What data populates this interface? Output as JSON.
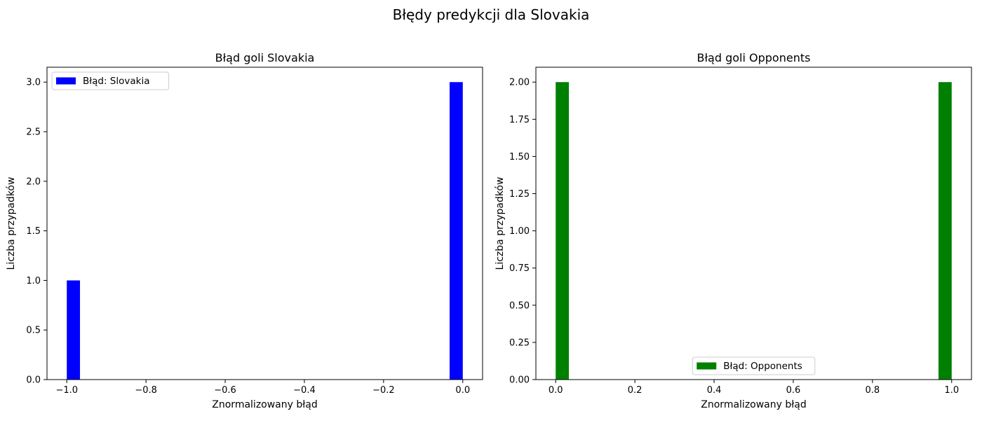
{
  "figure": {
    "suptitle": "Błędy predykcji dla Slovakia"
  },
  "chart_data": [
    {
      "type": "bar",
      "title": "Błąd goli Slovakia",
      "xlabel": "Znormalizowany błąd",
      "ylabel": "Liczba przypadków",
      "xlim": [
        -1.05,
        0.05
      ],
      "ylim": [
        0,
        3.15
      ],
      "xticks": [
        -1.0,
        -0.8,
        -0.6,
        -0.4,
        -0.2,
        0.0
      ],
      "xtick_labels": [
        "−1.0",
        "−0.8",
        "−0.6",
        "−0.4",
        "−0.2",
        "0.0"
      ],
      "yticks": [
        0,
        0.5,
        1,
        1.5,
        2,
        2.5,
        3
      ],
      "ytick_labels": [
        "0.0",
        "0.5",
        "1.0",
        "1.5",
        "2.0",
        "2.5",
        "3.0"
      ],
      "bars": [
        {
          "x_start": -1.0,
          "x_end": -0.9667,
          "value": 1
        },
        {
          "x_start": -0.0333,
          "x_end": 0.0,
          "value": 3
        }
      ],
      "legend": {
        "label": "Błąd: Slovakia",
        "placement": "upper-left"
      },
      "color": "#0000ff",
      "grid": false
    },
    {
      "type": "bar",
      "title": "Błąd goli Opponents",
      "xlabel": "Znormalizowany błąd",
      "ylabel": "Liczba przypadków",
      "xlim": [
        -0.05,
        1.05
      ],
      "ylim": [
        0,
        2.1
      ],
      "xticks": [
        0.0,
        0.2,
        0.4,
        0.6,
        0.8,
        1.0
      ],
      "xtick_labels": [
        "0.0",
        "0.2",
        "0.4",
        "0.6",
        "0.8",
        "1.0"
      ],
      "yticks": [
        0,
        0.25,
        0.5,
        0.75,
        1.0,
        1.25,
        1.5,
        1.75,
        2.0
      ],
      "ytick_labels": [
        "0.00",
        "0.25",
        "0.50",
        "0.75",
        "1.00",
        "1.25",
        "1.50",
        "1.75",
        "2.00"
      ],
      "bars": [
        {
          "x_start": 0.0,
          "x_end": 0.0333,
          "value": 2
        },
        {
          "x_start": 0.9667,
          "x_end": 1.0,
          "value": 2
        }
      ],
      "legend": {
        "label": "Błąd: Opponents",
        "placement": "lower-center"
      },
      "color": "#008000",
      "grid": false
    }
  ]
}
